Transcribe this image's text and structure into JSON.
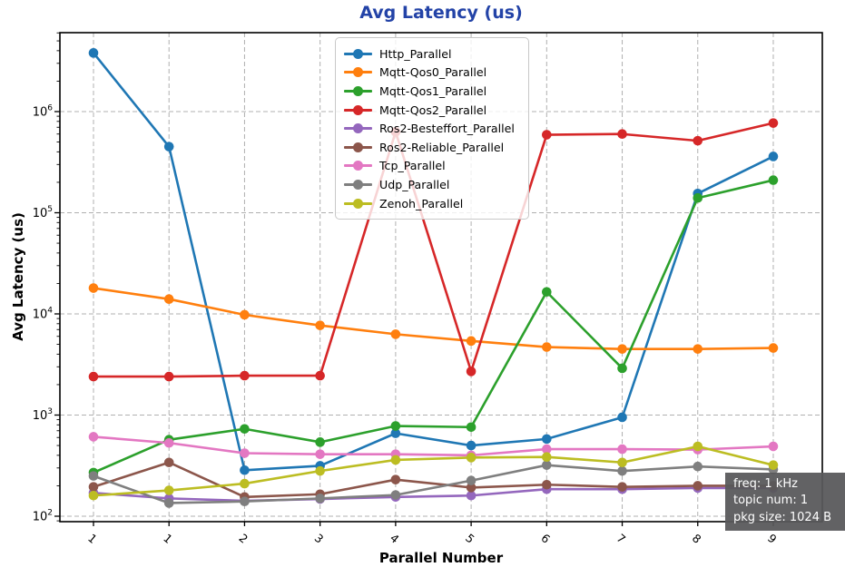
{
  "chart": {
    "title": "Avg Latency  (us)",
    "xlabel": "Parallel Number",
    "ylabel": "Avg Latency (us)"
  },
  "annotation": {
    "lines": [
      "freq: 1 kHz",
      "topic num: 1",
      "pkg size: 1024 B"
    ]
  },
  "chart_data": {
    "type": "line",
    "title": "Avg Latency  (us)",
    "xlabel": "Parallel Number",
    "ylabel": "Avg Latency (us)",
    "y_scale": "log",
    "ylim": [
      88,
      6000000
    ],
    "grid": true,
    "legend_position": "upper center",
    "title_color": "#2343a7",
    "x_tick_labels": [
      "1",
      "1",
      "2",
      "3",
      "4",
      "5",
      "6",
      "7",
      "8",
      "9"
    ],
    "y_tick_labels": [
      "10^2",
      "10^3",
      "10^4",
      "10^5",
      "10^6"
    ],
    "series": [
      {
        "name": "Http_Parallel",
        "color": "#1f77b4",
        "values": [
          3800000,
          450000,
          285,
          315,
          660,
          500,
          580,
          950,
          155000,
          360000
        ]
      },
      {
        "name": "Mqtt-Qos0_Parallel",
        "color": "#ff7f0e",
        "values": [
          18000,
          14000,
          9800,
          7700,
          6300,
          5400,
          4700,
          4500,
          4500,
          4600
        ]
      },
      {
        "name": "Mqtt-Qos1_Parallel",
        "color": "#2ca02c",
        "values": [
          270,
          570,
          730,
          540,
          780,
          760,
          16500,
          2900,
          140000,
          210000
        ]
      },
      {
        "name": "Mqtt-Qos2_Parallel",
        "color": "#d62728",
        "values": [
          2400,
          2400,
          2450,
          2450,
          630000,
          2700,
          590000,
          600000,
          515000,
          770000
        ]
      },
      {
        "name": "Ros2-Besteffort_Parallel",
        "color": "#9467bd",
        "values": [
          170,
          150,
          142,
          148,
          155,
          160,
          185,
          185,
          190,
          190
        ]
      },
      {
        "name": "Ros2-Reliable_Parallel",
        "color": "#8c564b",
        "values": [
          195,
          340,
          155,
          165,
          230,
          192,
          205,
          195,
          200,
          200
        ]
      },
      {
        "name": "Tcp_Parallel",
        "color": "#e377c2",
        "values": [
          610,
          530,
          420,
          410,
          410,
          400,
          460,
          460,
          455,
          490
        ]
      },
      {
        "name": "Udp_Parallel",
        "color": "#7f7f7f",
        "values": [
          250,
          135,
          140,
          150,
          162,
          225,
          320,
          280,
          310,
          290
        ]
      },
      {
        "name": "Zenoh_Parallel",
        "color": "#bcbd22",
        "values": [
          160,
          180,
          210,
          280,
          360,
          380,
          385,
          340,
          490,
          320
        ]
      }
    ]
  }
}
